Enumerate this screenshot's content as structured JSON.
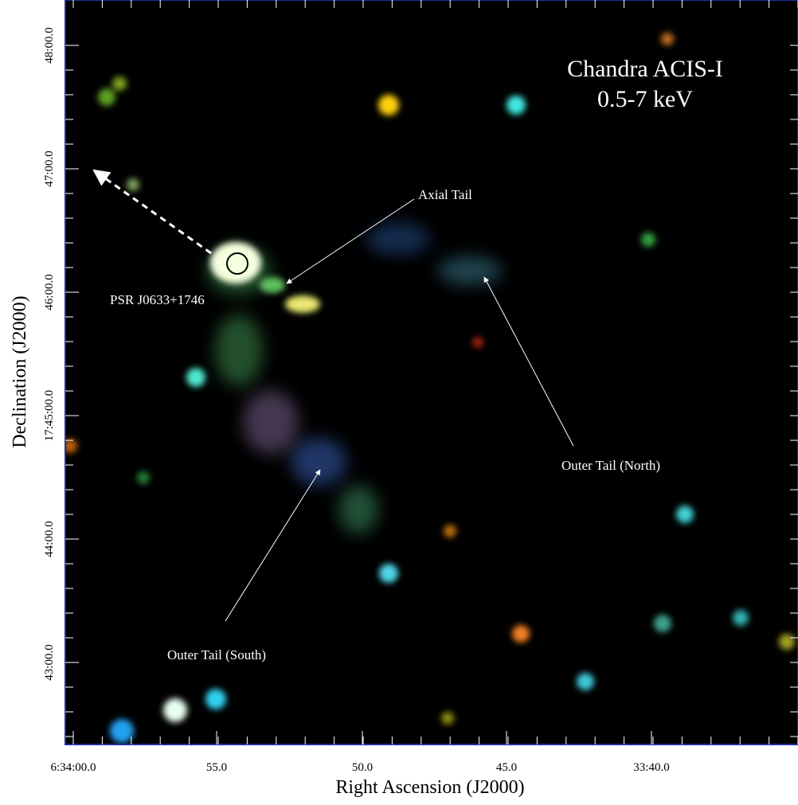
{
  "image": {
    "title": "Chandra ACIS-I",
    "subtitle": "0.5-7 keV",
    "x_axis_label": "Right Ascension (J2000)",
    "y_axis_label": "Declination (J2000)",
    "x_tick_labels": [
      "6:34:00.0",
      "55.0",
      "50.0",
      "45.0",
      "33:40.0"
    ],
    "y_tick_labels": [
      "48:00.0",
      "47:00.0",
      "46:00.0",
      "17:45:00.0",
      "44:00.0",
      "43:00.0"
    ],
    "annotations": [
      "PSR J0633+1746",
      "Axial Tail",
      "Outer Tail (North)",
      "Outer Tail (South)"
    ]
  }
}
